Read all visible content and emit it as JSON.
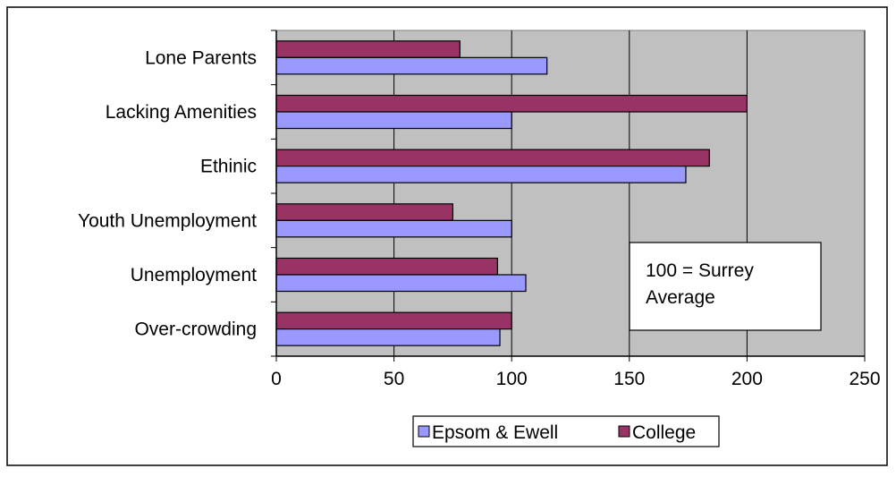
{
  "chart_data": {
    "type": "bar",
    "orientation": "horizontal",
    "title": "",
    "xlabel": "",
    "ylabel": "",
    "categories": [
      "Lone Parents",
      "Lacking Amenities",
      "Ethinic",
      "Youth Unemployment",
      "Unemployment",
      "Over-crowding"
    ],
    "series": [
      {
        "name": "College",
        "values": [
          78,
          200,
          184,
          75,
          94,
          100
        ]
      },
      {
        "name": "Epsom & Ewell",
        "values": [
          115,
          100,
          174,
          100,
          106,
          95
        ]
      }
    ],
    "xlim": [
      0,
      250
    ],
    "xticks": [
      "0",
      "50",
      "100",
      "150",
      "200",
      "250"
    ],
    "xtick_values": [
      0,
      50,
      100,
      150,
      200,
      250
    ],
    "grid": "vertical",
    "legend_position": "bottom",
    "legend_order": [
      "Epsom & Ewell",
      "College"
    ],
    "annotation": {
      "line1": "100 = Surrey",
      "line2": "Average"
    }
  },
  "colors": {
    "plot_background": "#c0c0c0",
    "college": "#993366",
    "epsom": "#9999ff",
    "gridline": "#000000"
  }
}
